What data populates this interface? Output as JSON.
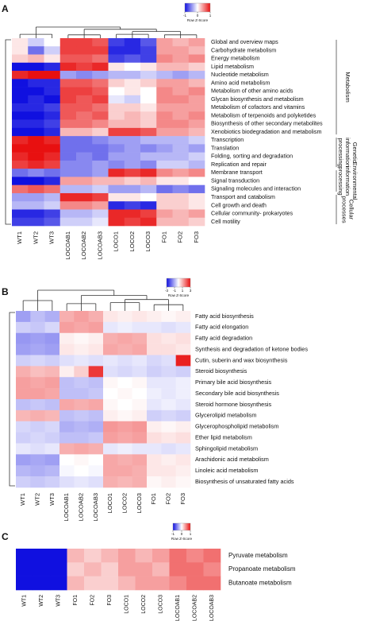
{
  "chart_data": [
    {
      "type": "heatmap",
      "panel": "A",
      "colorbar_title": "Row Z-Score",
      "colors": [
        "#1010e0",
        "#ffffff",
        "#e81010"
      ],
      "zlim": [
        -1,
        1
      ],
      "zticks": [
        -1,
        0,
        1
      ],
      "columns": [
        "WT1",
        "WT2",
        "WT3",
        "LOCOAB1",
        "LOCOAB2",
        "LOCOAB3",
        "LOCO1",
        "LOCO2",
        "LOCO3",
        "FO1",
        "FO2",
        "FO3"
      ],
      "rows": [
        "Global and overview maps",
        "Carbohydrate metabolism",
        "Energy metabolism",
        "Lipid metabolism",
        "Nucleotide metabolism",
        "Amino acid metabolism",
        "Metabolism of other amino acids",
        "Glycan biosynthesis and metabolism",
        "Metabolism of cofactors and vitamins",
        "Metabolism of terpenoids and polyketides",
        "Biosynthesis of other secondary metabolites",
        "Xenobiotics biodegradation and metabolism",
        "Transcription",
        "Translation",
        "Folding, sorting and degradation",
        "Replication and repair",
        "Membrane transport",
        "Signal transduction",
        "Signaling molecules and interaction",
        "Transport and catabolism",
        "Cell growth and death",
        "Cellular community- prokaryotes",
        "Cell motility"
      ],
      "row_groups": [
        "Metabolism",
        "Genetic information processing",
        "Environmental information processing",
        "Cellular processes"
      ],
      "values": [
        [
          0.1,
          -0.2,
          0.0,
          0.8,
          0.8,
          0.7,
          -0.8,
          -0.9,
          -0.7,
          0.4,
          0.3,
          0.4
        ],
        [
          0.1,
          -0.6,
          -0.2,
          0.8,
          0.8,
          0.8,
          -0.9,
          -0.9,
          -0.8,
          0.4,
          0.4,
          0.3
        ],
        [
          0.2,
          0.3,
          0.1,
          0.7,
          0.7,
          0.6,
          -0.8,
          -0.7,
          -0.8,
          0.5,
          0.4,
          0.5
        ],
        [
          -1.0,
          -1.0,
          -0.9,
          0.9,
          0.8,
          0.9,
          0.1,
          0.0,
          0.1,
          0.3,
          0.3,
          0.2
        ],
        [
          0.9,
          1.0,
          1.0,
          -0.4,
          -0.5,
          -0.4,
          -0.3,
          -0.3,
          -0.2,
          -0.3,
          -0.4,
          -0.3
        ],
        [
          -1.0,
          -0.9,
          -0.9,
          0.7,
          0.7,
          0.6,
          0.2,
          0.1,
          0.2,
          0.4,
          0.4,
          0.3
        ],
        [
          -1.0,
          -1.0,
          -0.9,
          0.8,
          0.8,
          0.7,
          0.0,
          0.1,
          0.0,
          0.5,
          0.4,
          0.5
        ],
        [
          -1.0,
          -0.9,
          -1.0,
          0.8,
          0.7,
          0.8,
          -0.1,
          -0.2,
          0.0,
          0.5,
          0.5,
          0.4
        ],
        [
          -0.9,
          -0.9,
          -0.8,
          0.7,
          0.7,
          0.6,
          0.2,
          0.2,
          0.1,
          0.4,
          0.4,
          0.4
        ],
        [
          -1.0,
          -1.0,
          -0.9,
          0.7,
          0.6,
          0.7,
          0.2,
          0.3,
          0.2,
          0.5,
          0.4,
          0.5
        ],
        [
          -0.9,
          -0.9,
          -0.8,
          0.6,
          0.6,
          0.5,
          0.3,
          0.3,
          0.2,
          0.5,
          0.5,
          0.4
        ],
        [
          -1.0,
          -1.0,
          -0.9,
          0.3,
          0.3,
          0.2,
          0.8,
          0.8,
          0.7,
          0.4,
          0.4,
          0.3
        ],
        [
          0.9,
          1.0,
          0.9,
          -0.6,
          -0.6,
          -0.5,
          -0.4,
          -0.4,
          -0.3,
          -0.3,
          -0.3,
          -0.2
        ],
        [
          1.0,
          1.0,
          1.0,
          -0.6,
          -0.6,
          -0.6,
          -0.5,
          -0.4,
          -0.5,
          -0.4,
          -0.3,
          -0.4
        ],
        [
          0.9,
          1.0,
          0.9,
          -0.6,
          -0.5,
          -0.6,
          -0.4,
          -0.4,
          -0.3,
          -0.3,
          -0.3,
          -0.2
        ],
        [
          0.8,
          0.9,
          0.8,
          -0.5,
          -0.5,
          -0.4,
          -0.5,
          -0.4,
          -0.5,
          -0.2,
          -0.2,
          -0.3
        ],
        [
          -0.6,
          -0.5,
          -0.6,
          -0.5,
          -0.5,
          -0.4,
          0.9,
          0.8,
          0.9,
          0.5,
          0.4,
          0.5
        ],
        [
          -1.0,
          -1.0,
          -0.9,
          0.4,
          0.4,
          0.3,
          0.3,
          0.2,
          0.3,
          0.1,
          0.1,
          0.0
        ],
        [
          0.6,
          0.7,
          0.6,
          -0.3,
          -0.3,
          -0.2,
          -0.4,
          -0.4,
          -0.3,
          -0.6,
          -0.5,
          -0.6
        ],
        [
          -0.4,
          -0.4,
          -0.3,
          0.9,
          0.9,
          0.8,
          0.1,
          0.1,
          0.0,
          0.2,
          0.2,
          0.1
        ],
        [
          -0.3,
          -0.3,
          -0.2,
          0.5,
          0.5,
          0.4,
          -0.9,
          -0.8,
          -0.9,
          0.2,
          0.2,
          0.1
        ],
        [
          -0.9,
          -0.9,
          -0.8,
          -0.3,
          -0.3,
          -0.2,
          0.9,
          0.9,
          0.8,
          0.4,
          0.3,
          0.4
        ],
        [
          -0.8,
          -0.8,
          -0.7,
          -0.2,
          -0.2,
          -0.1,
          0.9,
          0.8,
          0.9,
          0.3,
          0.3,
          0.2
        ]
      ]
    },
    {
      "type": "heatmap",
      "panel": "B",
      "colorbar_title": "Row Z-Score",
      "colors": [
        "#1010e0",
        "#ffffff",
        "#e81010"
      ],
      "zlim": [
        -3,
        3
      ],
      "zticks": [
        -3,
        -1,
        1,
        3
      ],
      "columns": [
        "WT1",
        "WT2",
        "WT3",
        "LOCOAB1",
        "LOCOAB2",
        "LOCOAB3",
        "LOCO1",
        "LOCO2",
        "LOCO3",
        "FO1",
        "FO2",
        "FO3"
      ],
      "rows": [
        "Fatty acid biosynthesis",
        "Fatty acid elongation",
        "Fatty acid degradation",
        "Synthesis and degradation of ketone bodies",
        "Cutin, suberin and wax biosynthesis",
        "Steroid biosynthesis",
        "Primary bile acid biosynthesis",
        "Secondary bile acid biosynthesis",
        "Steroid hormone biosynthesis",
        "Glycerolipid metabolism",
        "Glycerophospholipid metabolism",
        "Ether lipid metabolism",
        "Sphingolipid metabolism",
        "Arachidonic acid metabolism",
        "Linoleic acid metabolism",
        "Biosynthesis of unsaturated fatty acids"
      ],
      "values": [
        [
          -1.2,
          -0.8,
          -1.0,
          1.0,
          1.2,
          1.0,
          0.3,
          0.2,
          0.3,
          0.2,
          0.1,
          0.2
        ],
        [
          -0.6,
          -0.7,
          -0.5,
          1.2,
          1.1,
          1.2,
          -0.3,
          -0.2,
          -0.3,
          -0.3,
          -0.4,
          -0.3
        ],
        [
          -1.3,
          -1.2,
          -1.3,
          0.2,
          0.1,
          0.2,
          1.0,
          1.1,
          1.0,
          0.4,
          0.3,
          0.4
        ],
        [
          -1.2,
          -1.1,
          -1.2,
          0.3,
          0.2,
          0.3,
          1.1,
          1.0,
          1.1,
          0.4,
          0.4,
          0.3
        ],
        [
          -0.6,
          -0.5,
          -0.6,
          -0.4,
          -0.3,
          -0.4,
          -0.3,
          -0.4,
          -0.3,
          -0.5,
          -0.4,
          2.8
        ],
        [
          1.0,
          0.8,
          0.9,
          0.2,
          0.6,
          2.5,
          -0.4,
          -0.5,
          -0.4,
          -0.6,
          -0.5,
          -0.6
        ],
        [
          1.2,
          1.1,
          1.2,
          -0.8,
          -0.7,
          -0.8,
          0.1,
          0.0,
          0.1,
          -0.3,
          -0.3,
          -0.2
        ],
        [
          1.2,
          1.2,
          1.1,
          -0.8,
          -0.8,
          -0.7,
          0.0,
          0.1,
          0.0,
          -0.2,
          -0.3,
          -0.2
        ],
        [
          -0.8,
          -0.7,
          -0.8,
          1.1,
          1.0,
          1.1,
          0.1,
          0.0,
          0.1,
          -0.3,
          -0.2,
          -0.3
        ],
        [
          0.9,
          1.0,
          0.9,
          -0.8,
          -0.7,
          -0.8,
          0.2,
          0.1,
          0.2,
          -0.6,
          -0.5,
          -0.6
        ],
        [
          -0.5,
          -0.6,
          -0.5,
          -1.0,
          -0.9,
          -1.0,
          1.3,
          1.2,
          1.3,
          0.2,
          0.1,
          0.2
        ],
        [
          -0.6,
          -0.5,
          -0.6,
          -0.8,
          -0.8,
          -0.7,
          1.2,
          1.1,
          1.2,
          0.4,
          0.3,
          0.4
        ],
        [
          -0.3,
          -0.4,
          -0.3,
          1.0,
          1.1,
          1.0,
          -0.3,
          -0.2,
          -0.3,
          -0.3,
          -0.4,
          -0.3
        ],
        [
          -1.2,
          -1.1,
          -1.2,
          0.0,
          0.1,
          0.0,
          1.1,
          1.0,
          1.1,
          0.3,
          0.2,
          0.3
        ],
        [
          -0.9,
          -1.0,
          -0.9,
          -0.1,
          0.0,
          -0.1,
          1.1,
          1.1,
          1.0,
          0.3,
          0.3,
          0.2
        ],
        [
          -0.6,
          -0.7,
          -0.6,
          -0.4,
          -0.3,
          -0.4,
          1.0,
          0.9,
          1.0,
          0.1,
          0.2,
          0.1
        ]
      ]
    },
    {
      "type": "heatmap",
      "panel": "C",
      "colorbar_title": "Row Z-Score",
      "colors": [
        "#1010e0",
        "#ffffff",
        "#e81010"
      ],
      "zlim": [
        -1,
        1
      ],
      "zticks": [
        -1,
        0,
        1
      ],
      "columns": [
        "WT1",
        "WT2",
        "WT3",
        "FO1",
        "FO2",
        "FO3",
        "LOCO1",
        "LOCO2",
        "LOCO3",
        "LOCOAB1",
        "LOCOAB2",
        "LOCOAB3"
      ],
      "rows": [
        "Pyruvate metabolism",
        "Propanoate metabolism",
        "Butanoate metabolism"
      ],
      "values": [
        [
          -1.2,
          -1.2,
          -1.1,
          0.3,
          0.2,
          0.3,
          0.4,
          0.3,
          0.4,
          0.6,
          0.5,
          0.6
        ],
        [
          -1.2,
          -1.1,
          -1.2,
          0.2,
          0.3,
          0.2,
          0.4,
          0.4,
          0.3,
          0.6,
          0.6,
          0.5
        ],
        [
          -1.1,
          -1.2,
          -1.2,
          0.3,
          0.2,
          0.2,
          0.3,
          0.4,
          0.4,
          0.5,
          0.6,
          0.6
        ]
      ]
    }
  ]
}
